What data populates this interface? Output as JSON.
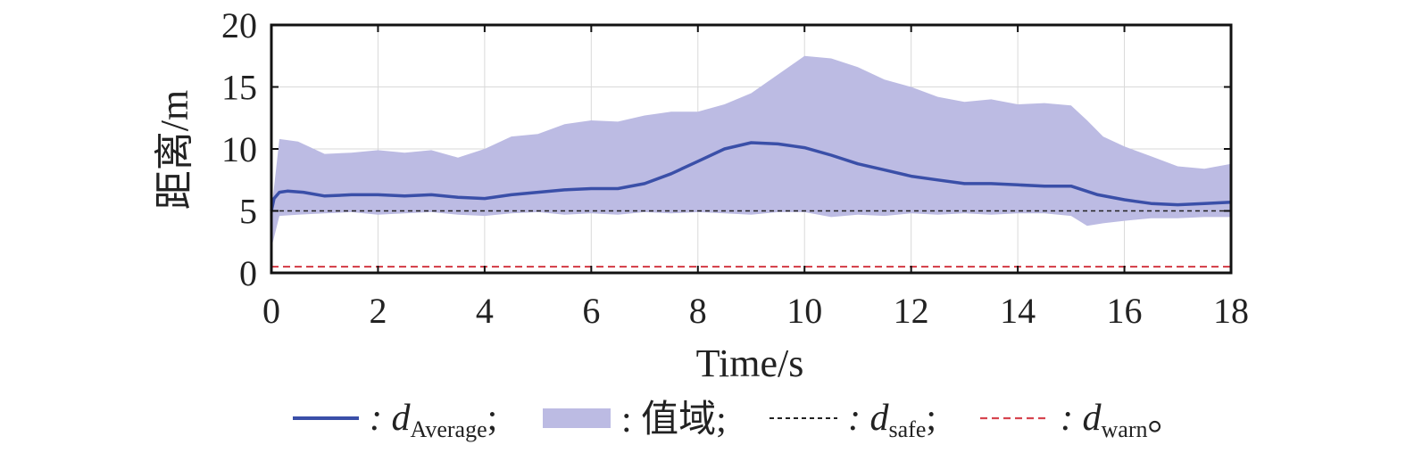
{
  "chart_data": {
    "type": "area",
    "title": "",
    "xlabel": "Time/s",
    "ylabel": "距离/m",
    "xlim": [
      0,
      18
    ],
    "ylim": [
      0,
      20
    ],
    "xticks": [
      "0",
      "2",
      "4",
      "6",
      "8",
      "10",
      "12",
      "14",
      "16",
      "18"
    ],
    "yticks": [
      "0",
      "5",
      "10",
      "15",
      "20"
    ],
    "grid": true,
    "legend_position": "bottom",
    "colors": {
      "average": "#3a4fa8",
      "range": "#bcbbe3",
      "safe": "#222222",
      "warn": "#d6454f"
    },
    "series": [
      {
        "key": "range",
        "x": [
          0,
          0.15,
          0.5,
          1,
          1.5,
          2,
          2.5,
          3,
          3.5,
          4,
          4.5,
          5,
          5.5,
          6,
          6.5,
          7,
          7.5,
          8,
          8.5,
          9,
          9.5,
          10,
          10.5,
          11,
          11.5,
          12,
          12.5,
          13,
          13.5,
          14,
          14.5,
          15,
          15.3,
          15.6,
          16,
          16.5,
          17,
          17.5,
          18
        ],
        "upper": [
          5.0,
          10.8,
          10.6,
          9.6,
          9.7,
          9.9,
          9.7,
          9.9,
          9.3,
          10.0,
          11.0,
          11.2,
          12.0,
          12.3,
          12.2,
          12.7,
          13.0,
          13.0,
          13.6,
          14.5,
          16.0,
          17.5,
          17.3,
          16.6,
          15.6,
          15.0,
          14.2,
          13.8,
          14.0,
          13.6,
          13.7,
          13.5,
          12.3,
          11.0,
          10.2,
          9.4,
          8.6,
          8.4,
          8.8
        ],
        "lower": [
          2.0,
          4.6,
          4.7,
          4.8,
          4.9,
          4.7,
          4.8,
          4.9,
          4.7,
          4.6,
          4.8,
          4.9,
          4.7,
          4.8,
          4.7,
          4.9,
          4.8,
          4.9,
          4.8,
          4.7,
          4.9,
          4.9,
          4.5,
          4.7,
          4.6,
          4.8,
          4.7,
          4.8,
          4.7,
          4.8,
          4.8,
          4.6,
          3.8,
          4.0,
          4.2,
          4.4,
          4.4,
          4.5,
          4.5
        ]
      },
      {
        "key": "average",
        "x": [
          0,
          0.05,
          0.15,
          0.3,
          0.6,
          1,
          1.5,
          2,
          2.5,
          3,
          3.5,
          4,
          4.5,
          5,
          5.5,
          6,
          6.5,
          7,
          7.5,
          8,
          8.5,
          9,
          9.5,
          10,
          10.5,
          11,
          11.5,
          12,
          12.5,
          13,
          13.5,
          14,
          14.5,
          15,
          15.5,
          16,
          16.5,
          17,
          17.5,
          18
        ],
        "y": [
          5.0,
          6.0,
          6.5,
          6.6,
          6.5,
          6.2,
          6.3,
          6.3,
          6.2,
          6.3,
          6.1,
          6.0,
          6.3,
          6.5,
          6.7,
          6.8,
          6.8,
          7.2,
          8.0,
          9.0,
          10.0,
          10.5,
          10.4,
          10.1,
          9.5,
          8.8,
          8.3,
          7.8,
          7.5,
          7.2,
          7.2,
          7.1,
          7.0,
          7.0,
          6.3,
          5.9,
          5.6,
          5.5,
          5.6,
          5.7
        ]
      },
      {
        "key": "safe",
        "y": 5.0
      },
      {
        "key": "warn",
        "y": 0.5
      }
    ],
    "legend": {
      "average": {
        "prefix": ": d",
        "sub": "Average",
        "suffix": ";"
      },
      "range": {
        "text": ": 值域;"
      },
      "safe": {
        "prefix": ": d",
        "sub": "safe",
        "suffix": ";"
      },
      "warn": {
        "prefix": ": d",
        "sub": "warn",
        "suffix": "。"
      }
    }
  }
}
